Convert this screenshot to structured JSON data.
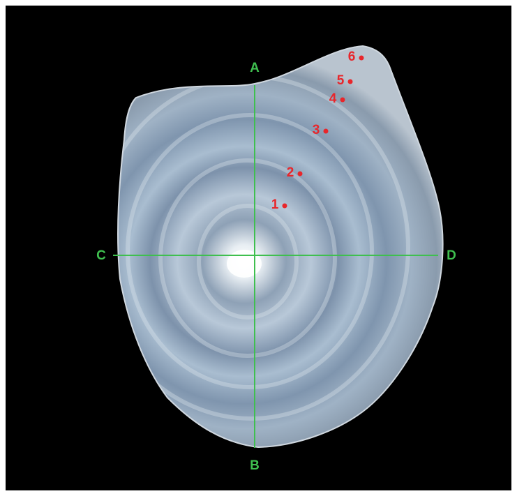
{
  "axes": {
    "top": "A",
    "bottom": "B",
    "left": "C",
    "right": "D"
  },
  "points": [
    "1",
    "2",
    "3",
    "4",
    "5",
    "6"
  ]
}
